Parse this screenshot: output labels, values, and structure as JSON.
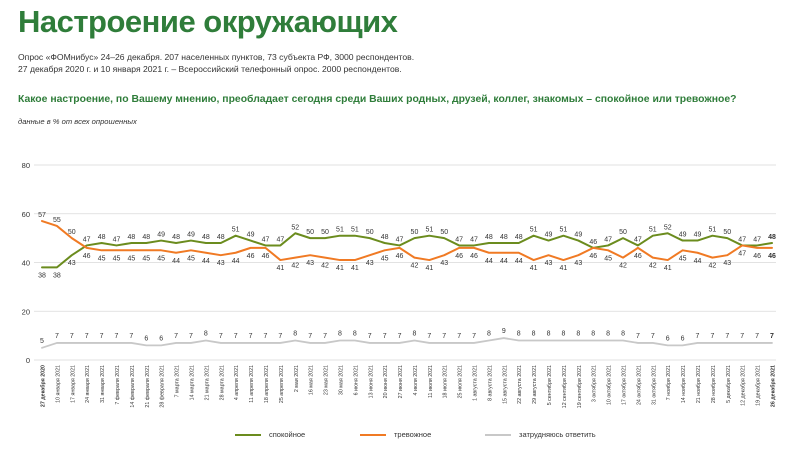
{
  "header": {
    "title": "Настроение окружающих",
    "source_line1": "Опрос «ФОМнибус» 24–26 декабря. 207 населенных пунктов, 73 субъекта РФ, 3000 респондентов.",
    "source_line2": "27 декабря 2020 г. и 10 января 2021 г. – Всероссийский телефонный опрос. 2000 респондентов.",
    "question": "Какое настроение, по Вашему мнению, преобладает сегодня среди Ваших родных, друзей, коллег, знакомых – спокойное или тревожное?",
    "note": "данные в % от всех опрошенных"
  },
  "colors": {
    "calm": "#6b8c1e",
    "anxious": "#f07a24",
    "unsure": "#c8c8c8",
    "grid": "#d9d9d9",
    "title": "#2f7d3a"
  },
  "chart_data": {
    "type": "line",
    "ylim": [
      0,
      80
    ],
    "yticks": [
      0,
      20,
      40,
      60,
      80
    ],
    "grid": true,
    "legend_position": "bottom",
    "categories": [
      "27 декабря 2020",
      "10 января 2021",
      "17 января 2021",
      "24 января 2021",
      "31 января 2021",
      "7 февраля 2021",
      "14 февраля 2021",
      "21 февраля 2021",
      "28 февраля 2021",
      "7 марта 2021",
      "14 марта 2021",
      "21 марта 2021",
      "28 марта 2021",
      "4 апреля 2021",
      "11 апреля 2021",
      "18 апреля 2021",
      "25 апреля 2021",
      "2 мая 2021",
      "16 мая 2021",
      "23 мая 2021",
      "30 мая 2021",
      "6 июня 2021",
      "13 июня 2021",
      "20 июня 2021",
      "27 июня 2021",
      "4 июля 2021",
      "11 июля 2021",
      "18 июля 2021",
      "25 июля 2021",
      "1 августа 2021",
      "8 августа 2021",
      "15 августа 2021",
      "22 августа 2021",
      "29 августа 2021",
      "5 сентября 2021",
      "12 сентября 2021",
      "19 сентября 2021",
      "3 октября 2021",
      "10 октября 2021",
      "17 октября 2021",
      "24 октября 2021",
      "31 октября 2021",
      "7 ноября 2021",
      "14 ноября 2021",
      "21 ноября 2021",
      "28 ноября 2021",
      "5 декабря 2021",
      "12 декабря 2021",
      "19 декабря 2021",
      "26 декабря 2021"
    ],
    "series": [
      {
        "name": "спокойное",
        "key": "calm",
        "values": [
          38,
          38,
          43,
          47,
          48,
          47,
          48,
          48,
          49,
          48,
          49,
          48,
          48,
          51,
          49,
          47,
          47,
          52,
          50,
          50,
          51,
          51,
          50,
          48,
          47,
          50,
          51,
          50,
          47,
          47,
          48,
          48,
          48,
          51,
          49,
          51,
          49,
          46,
          47,
          50,
          47,
          51,
          52,
          49,
          49,
          51,
          50,
          47,
          47,
          48
        ]
      },
      {
        "name": "тревожное",
        "key": "anxious",
        "values": [
          57,
          55,
          50,
          46,
          45,
          45,
          45,
          45,
          45,
          44,
          45,
          44,
          43,
          44,
          46,
          46,
          41,
          42,
          43,
          42,
          41,
          41,
          43,
          45,
          46,
          42,
          41,
          43,
          46,
          46,
          44,
          44,
          44,
          41,
          43,
          41,
          43,
          46,
          45,
          42,
          46,
          42,
          41,
          45,
          44,
          42,
          43,
          47,
          46,
          46
        ]
      },
      {
        "name": "затрудняюсь ответить",
        "key": "unsure",
        "values": [
          5,
          7,
          7,
          7,
          7,
          7,
          7,
          6,
          6,
          7,
          7,
          8,
          7,
          7,
          7,
          7,
          7,
          8,
          7,
          7,
          8,
          8,
          7,
          7,
          7,
          8,
          7,
          7,
          7,
          7,
          8,
          9,
          8,
          8,
          8,
          8,
          8,
          8,
          8,
          8,
          7,
          7,
          6,
          6,
          7,
          7,
          7,
          7,
          7,
          7
        ]
      }
    ],
    "label_positions": {
      "calm": [
        "below",
        "below",
        "below",
        "above",
        "above",
        "above",
        "above",
        "above",
        "above",
        "above",
        "above",
        "above",
        "above",
        "above",
        "above",
        "above",
        "above",
        "above",
        "above",
        "above",
        "above",
        "above",
        "above",
        "above",
        "above",
        "above",
        "above",
        "above",
        "above",
        "above",
        "above",
        "above",
        "above",
        "above",
        "above",
        "above",
        "above",
        "above",
        "above",
        "above",
        "above",
        "above",
        "above",
        "above",
        "above",
        "above",
        "above",
        "above",
        "above",
        "above"
      ],
      "anxious": [
        "above",
        "above",
        "above",
        "below",
        "below",
        "below",
        "below",
        "below",
        "below",
        "below",
        "below",
        "below",
        "below",
        "below",
        "below",
        "below",
        "below",
        "below",
        "below",
        "below",
        "below",
        "below",
        "below",
        "below",
        "below",
        "below",
        "below",
        "below",
        "below",
        "below",
        "below",
        "below",
        "below",
        "below",
        "below",
        "below",
        "below",
        "below",
        "below",
        "below",
        "below",
        "below",
        "below",
        "below",
        "below",
        "below",
        "below",
        "below",
        "below",
        "below"
      ]
    }
  }
}
